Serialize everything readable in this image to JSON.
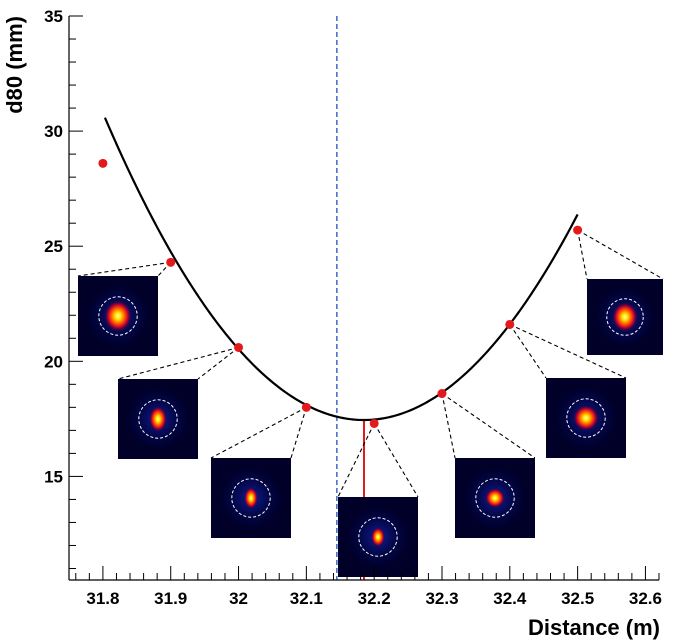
{
  "chart_data": {
    "type": "scatter",
    "xlabel": "Distance (m)",
    "ylabel": "d80 (mm)",
    "xlim": [
      31.75,
      32.62
    ],
    "ylim": [
      10.5,
      35
    ],
    "x_ticks": [
      31.8,
      31.9,
      32,
      32.1,
      32.2,
      32.3,
      32.4,
      32.5,
      32.6
    ],
    "x_tick_labels": [
      "31.8",
      "31.9",
      "32",
      "32.1",
      "32.2",
      "32.3",
      "32.4",
      "32.5",
      "32.6"
    ],
    "y_ticks": [
      15,
      20,
      25,
      30,
      35
    ],
    "y_tick_labels": [
      "15",
      "20",
      "25",
      "30",
      "35"
    ],
    "grid": false,
    "series": [
      {
        "type": "scatter",
        "color": "#e31a1c",
        "x": [
          31.8,
          31.9,
          32.0,
          32.1,
          32.2,
          32.3,
          32.4,
          32.5
        ],
        "y": [
          28.6,
          24.3,
          20.6,
          18.0,
          17.3,
          18.6,
          21.6,
          25.7
        ]
      },
      {
        "type": "line",
        "color": "#000000",
        "fit": "parabola",
        "vertex_x": 32.185,
        "vertex_y": 17.45,
        "curvature": 90,
        "x_range": [
          31.803,
          32.5
        ]
      }
    ],
    "annotations": [
      {
        "type": "vline",
        "style": "dashed",
        "color": "#1f4fbf",
        "x": 32.145,
        "y_range": [
          10.5,
          35
        ]
      },
      {
        "type": "vline",
        "style": "solid",
        "color": "#e31a1c",
        "x": 32.185,
        "y_range": [
          10.5,
          17.45
        ]
      }
    ],
    "insets": [
      {
        "point_x": 31.9,
        "point_y": 24.3,
        "icon": "beam-spot-icon"
      },
      {
        "point_x": 32.0,
        "point_y": 20.6,
        "icon": "beam-spot-icon"
      },
      {
        "point_x": 32.1,
        "point_y": 18.0,
        "icon": "beam-spot-icon"
      },
      {
        "point_x": 32.2,
        "point_y": 17.3,
        "icon": "beam-spot-icon"
      },
      {
        "point_x": 32.3,
        "point_y": 18.6,
        "icon": "beam-spot-icon"
      },
      {
        "point_x": 32.4,
        "point_y": 21.6,
        "icon": "beam-spot-icon"
      },
      {
        "point_x": 32.5,
        "point_y": 25.7,
        "icon": "beam-spot-icon"
      }
    ]
  }
}
